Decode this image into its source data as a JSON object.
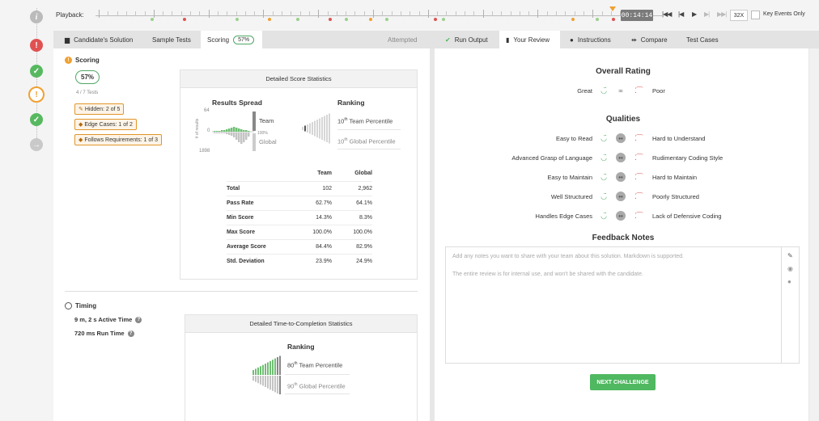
{
  "playback": {
    "label": "Playback:",
    "time": "00:14:14",
    "speed": "32X",
    "key_events_label": "Key Events Only",
    "buttons": [
      "first",
      "prev",
      "play",
      "next",
      "last"
    ]
  },
  "tabs": {
    "candidate_solution": "Candidate's Solution",
    "sample_tests": "Sample Tests",
    "scoring": "Scoring",
    "scoring_pct": "57%",
    "attempted": "Attempted",
    "run_output": "Run Output",
    "your_review": "Your Review",
    "instructions": "Instructions",
    "compare": "Compare",
    "test_cases": "Test Cases"
  },
  "scoring": {
    "title": "Scoring",
    "score": "57%",
    "tests": "4 / 7 Tests",
    "tags": [
      {
        "label": "Hidden:",
        "value": "2 of 5"
      },
      {
        "label": "Edge Cases:",
        "value": "1 of 2"
      },
      {
        "label": "Follows Requirements:",
        "value": "1 of 3"
      }
    ]
  },
  "score_stats": {
    "head": "Detailed Score Statistics",
    "spread_title": "Results Spread",
    "ranking_title": "Ranking",
    "axis_top": "64",
    "axis_zero": "0",
    "axis_bottom": "1898",
    "axis_label": "# of results",
    "pct_100": "100%",
    "team_label": "Team",
    "global_label": "Global",
    "team_percentile": "10",
    "team_percentile_text": "Team Percentile",
    "global_percentile": "10",
    "global_percentile_text": "Global Percentile",
    "ordinal": "th",
    "columns": [
      "Team",
      "Global"
    ],
    "rows": [
      {
        "label": "Total",
        "team": "102",
        "global": "2,962"
      },
      {
        "label": "Pass Rate",
        "team": "62.7%",
        "global": "64.1%"
      },
      {
        "label": "Min Score",
        "team": "14.3%",
        "global": "8.3%"
      },
      {
        "label": "Max Score",
        "team": "100.0%",
        "global": "100.0%"
      },
      {
        "label": "Average Score",
        "team": "84.4%",
        "global": "82.9%"
      },
      {
        "label": "Std. Deviation",
        "team": "23.9%",
        "global": "24.9%"
      }
    ]
  },
  "timing": {
    "title": "Timing",
    "active_time": "9 m, 2 s Active Time",
    "run_time": "720 ms Run Time",
    "head": "Detailed Time-to-Completion Statistics",
    "ranking_title": "Ranking",
    "team_percentile": "80",
    "team_percentile_text": "Team Percentile",
    "global_percentile": "90",
    "global_percentile_text": "Global Percentile",
    "ordinal": "th"
  },
  "review": {
    "overall_title": "Overall Rating",
    "great": "Great",
    "poor": "Poor",
    "qualities_title": "Qualities",
    "qualities": [
      {
        "good": "Easy to Read",
        "bad": "Hard to Understand"
      },
      {
        "good": "Advanced Grasp of Language",
        "bad": "Rudimentary Coding Style"
      },
      {
        "good": "Easy to Maintain",
        "bad": "Hard to Maintain"
      },
      {
        "good": "Well Structured",
        "bad": "Poorly Structured"
      },
      {
        "good": "Handles Edge Cases",
        "bad": "Lack of Defensive Coding"
      }
    ],
    "feedback_title": "Feedback Notes",
    "notes_placeholder": "Add any notes you want to share with your team about this solution. Markdown is supported.",
    "notes_hint": "The entire review is for internal use, and won't be shared with the candidate.",
    "next_button": "NEXT CHALLENGE"
  },
  "colors": {
    "green": "#4fb860",
    "orange": "#f0a030",
    "red": "#e05252"
  }
}
